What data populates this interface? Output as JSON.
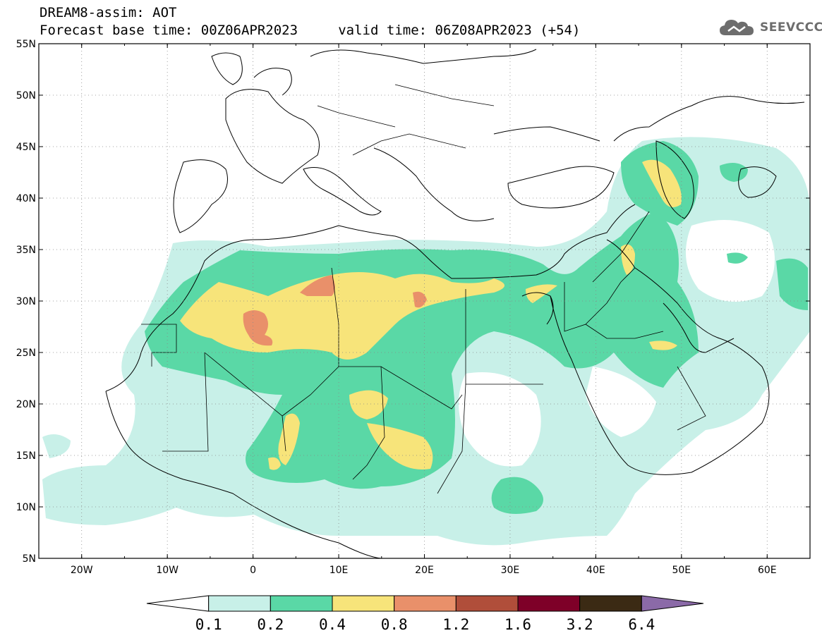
{
  "title": {
    "line1": "DREAM8-assim: AOT",
    "line2": "Forecast base time: 00Z06APR2023     valid time: 06Z08APR2023 (+54)"
  },
  "logo": {
    "text": "SEEVCCC",
    "icon": "cloud-icon"
  },
  "map": {
    "lon_range": [
      -25,
      65
    ],
    "lat_range": [
      5,
      55
    ],
    "lon_ticks": [
      {
        "value": -20,
        "label": "20W"
      },
      {
        "value": -10,
        "label": "10W"
      },
      {
        "value": 0,
        "label": "0"
      },
      {
        "value": 10,
        "label": "10E"
      },
      {
        "value": 20,
        "label": "20E"
      },
      {
        "value": 30,
        "label": "30E"
      },
      {
        "value": 40,
        "label": "40E"
      },
      {
        "value": 50,
        "label": "50E"
      },
      {
        "value": 60,
        "label": "60E"
      }
    ],
    "lat_ticks": [
      {
        "value": 55,
        "label": "55N"
      },
      {
        "value": 50,
        "label": "50N"
      },
      {
        "value": 45,
        "label": "45N"
      },
      {
        "value": 40,
        "label": "40N"
      },
      {
        "value": 35,
        "label": "35N"
      },
      {
        "value": 30,
        "label": "30N"
      },
      {
        "value": 25,
        "label": "25N"
      },
      {
        "value": 20,
        "label": "20N"
      },
      {
        "value": 15,
        "label": "15N"
      },
      {
        "value": 10,
        "label": "10N"
      },
      {
        "value": 5,
        "label": "5N"
      }
    ],
    "grid": "dotted"
  },
  "colorbar": {
    "labels": [
      "0.1",
      "0.2",
      "0.4",
      "0.8",
      "1.2",
      "1.6",
      "3.2",
      "6.4"
    ],
    "colors": [
      "#ffffff",
      "#c8f0e8",
      "#5ad8a6",
      "#f7e47a",
      "#e9906a",
      "#b04e3a",
      "#7e0028",
      "#3b2a14",
      "#8b6aa8"
    ]
  }
}
